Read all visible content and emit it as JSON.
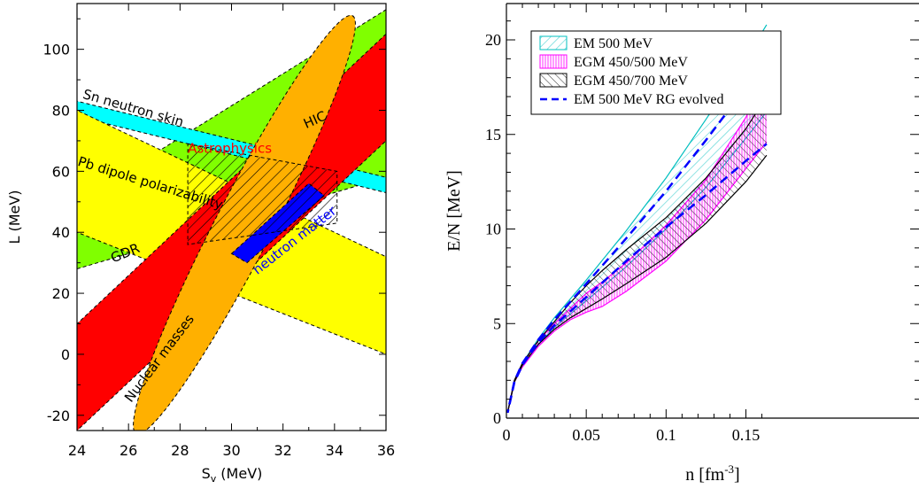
{
  "chart_data": [
    {
      "type": "area",
      "xlabel": "S",
      "xlabel_sub": "v",
      "xlabel_unit": "(MeV)",
      "ylabel": "L (MeV)",
      "xlim": [
        24,
        36
      ],
      "ylim": [
        -25,
        115
      ],
      "xticks": [
        24,
        26,
        28,
        30,
        32,
        34,
        36
      ],
      "yticks": [
        -20,
        0,
        20,
        40,
        60,
        80,
        100
      ],
      "regions": [
        {
          "name": "HIC",
          "color": "#80ff00",
          "polygon": [
            [
              24,
              28
            ],
            [
              24,
              50
            ],
            [
              36,
              113
            ],
            [
              36,
              58
            ]
          ]
        },
        {
          "name": "Sn neutron skin",
          "color": "#00ffff",
          "polygon": [
            [
              24,
              78
            ],
            [
              24,
              83
            ],
            [
              36,
              58
            ],
            [
              36,
              53
            ]
          ]
        },
        {
          "name": "Pb dipole polarizability",
          "color": "#ffff00",
          "polygon": [
            [
              24,
              40
            ],
            [
              24,
              80
            ],
            [
              36,
              32
            ],
            [
              36,
              0
            ]
          ]
        },
        {
          "name": "GDR",
          "color": "#ff0000",
          "polygon": [
            [
              24,
              -25
            ],
            [
              24,
              10
            ],
            [
              36,
              105
            ],
            [
              36,
              70
            ]
          ]
        },
        {
          "name": "Nuclear masses",
          "color": "#ffb000",
          "ellipse": {
            "center": [
              30.5,
              42.5
            ],
            "axis_end": [
              34.7,
              111
            ],
            "semi_minor_L": 15
          }
        },
        {
          "name": "neutron matter",
          "color": "#0000ff",
          "polygon": [
            [
              30.0,
              33
            ],
            [
              33.0,
              56
            ],
            [
              33.6,
              52
            ],
            [
              30.6,
              30
            ]
          ]
        },
        {
          "name": "Astrophysics",
          "color": "#ff0000",
          "hatched": true,
          "polygon": [
            [
              28.3,
              69
            ],
            [
              34.1,
              60
            ],
            [
              34.1,
              43
            ],
            [
              28.3,
              36
            ]
          ]
        }
      ],
      "labels": [
        {
          "text": "Sn neutron skin",
          "color": "#000000",
          "at": [
            24.2,
            84
          ],
          "rotate": 16
        },
        {
          "text": "HIC",
          "color": "#000000",
          "at": [
            32.9,
            74
          ],
          "rotate": -24
        },
        {
          "text": "Astrophysics",
          "color": "#ff0000",
          "at": [
            28.3,
            66
          ],
          "rotate": 0
        },
        {
          "text": "Pb dipole polarizability",
          "color": "#000000",
          "at": [
            24.0,
            62
          ],
          "rotate": 17
        },
        {
          "text": "GDR",
          "color": "#000000",
          "at": [
            25.4,
            30
          ],
          "rotate": -22
        },
        {
          "text": "neutron matter",
          "color": "#0000ff",
          "at": [
            31.0,
            26
          ],
          "rotate": -38
        },
        {
          "text": "Nuclear masses",
          "color": "#000000",
          "at": [
            26.1,
            -16
          ],
          "rotate": -53
        }
      ]
    },
    {
      "type": "line",
      "xlabel": "n [fm",
      "xlabel_sup": "-3",
      "xlabel_end": "]",
      "ylabel": "E/N [MeV]",
      "xlim": [
        0,
        0.163
      ],
      "ylim": [
        0,
        22
      ],
      "xticks": [
        0,
        0.05,
        0.1,
        0.15
      ],
      "xtick_labels": [
        "0",
        "0.05",
        "0.1",
        "0.15"
      ],
      "yticks": [
        0,
        5,
        10,
        15,
        20
      ],
      "legend": [
        {
          "label": "EM 500 MeV",
          "color": "#00bfbf",
          "style": "hatch-diag"
        },
        {
          "label": "EGM 450/500 MeV",
          "color": "#ff00ff",
          "style": "hatch-vert"
        },
        {
          "label": "EGM 450/700 MeV",
          "color": "#000000",
          "style": "hatch-back"
        },
        {
          "label": "EM 500 MeV RG evolved",
          "color": "#0000ff",
          "style": "dashed"
        }
      ],
      "bands": [
        {
          "name": "EM 500 MeV",
          "color": "#00bfbf",
          "hatch": "diag",
          "x": [
            0,
            0.005,
            0.01,
            0.02,
            0.03,
            0.05,
            0.075,
            0.1,
            0.125,
            0.15,
            0.163
          ],
          "upper": [
            0,
            2.0,
            2.9,
            4.2,
            5.3,
            7.3,
            9.9,
            12.7,
            15.8,
            19.0,
            20.8
          ],
          "lower": [
            0,
            1.9,
            2.8,
            3.9,
            4.8,
            6.2,
            8.0,
            10.0,
            12.2,
            14.8,
            16.2
          ]
        },
        {
          "name": "EGM 450/500 MeV",
          "color": "#ff00ff",
          "hatch": "vert",
          "x": [
            0,
            0.005,
            0.01,
            0.02,
            0.03,
            0.04,
            0.05,
            0.06,
            0.075,
            0.1,
            0.125,
            0.15,
            0.163
          ],
          "upper": [
            0,
            2.0,
            2.9,
            4.1,
            5.0,
            5.8,
            6.6,
            7.2,
            8.2,
            10.2,
            12.6,
            15.9,
            18.2
          ],
          "lower": [
            0,
            1.9,
            2.7,
            3.8,
            4.6,
            5.2,
            5.6,
            5.9,
            6.7,
            8.3,
            10.5,
            13.2,
            14.6
          ]
        },
        {
          "name": "EGM 450/700 MeV",
          "color": "#000000",
          "hatch": "back",
          "x": [
            0,
            0.005,
            0.01,
            0.02,
            0.03,
            0.04,
            0.05,
            0.06,
            0.075,
            0.1,
            0.125,
            0.15,
            0.163
          ],
          "upper": [
            0,
            2.0,
            2.9,
            4.1,
            5.1,
            6.1,
            7.0,
            7.8,
            8.9,
            10.6,
            12.7,
            15.3,
            17.0
          ],
          "lower": [
            0,
            1.9,
            2.8,
            3.9,
            4.7,
            5.3,
            5.8,
            6.3,
            7.1,
            8.5,
            10.3,
            12.5,
            13.9
          ]
        }
      ],
      "series": [
        {
          "name": "EM 500 MeV RG evolved",
          "color": "#0000ff",
          "style": "dashed",
          "x": [
            0,
            0.005,
            0.01,
            0.02,
            0.03,
            0.05,
            0.075,
            0.1,
            0.125,
            0.15,
            0.163
          ],
          "y": [
            0,
            1.95,
            2.9,
            4.15,
            5.2,
            7.1,
            9.5,
            12.0,
            14.7,
            17.5,
            18.9
          ]
        },
        {
          "name": "EM 500 MeV RG evolved",
          "color": "#0000ff",
          "style": "dashed",
          "x": [
            0,
            0.005,
            0.01,
            0.02,
            0.03,
            0.05,
            0.075,
            0.1,
            0.125,
            0.15,
            0.163
          ],
          "y": [
            0,
            1.9,
            2.8,
            4.0,
            4.9,
            6.4,
            8.3,
            10.1,
            11.8,
            13.6,
            14.5
          ]
        }
      ]
    }
  ]
}
